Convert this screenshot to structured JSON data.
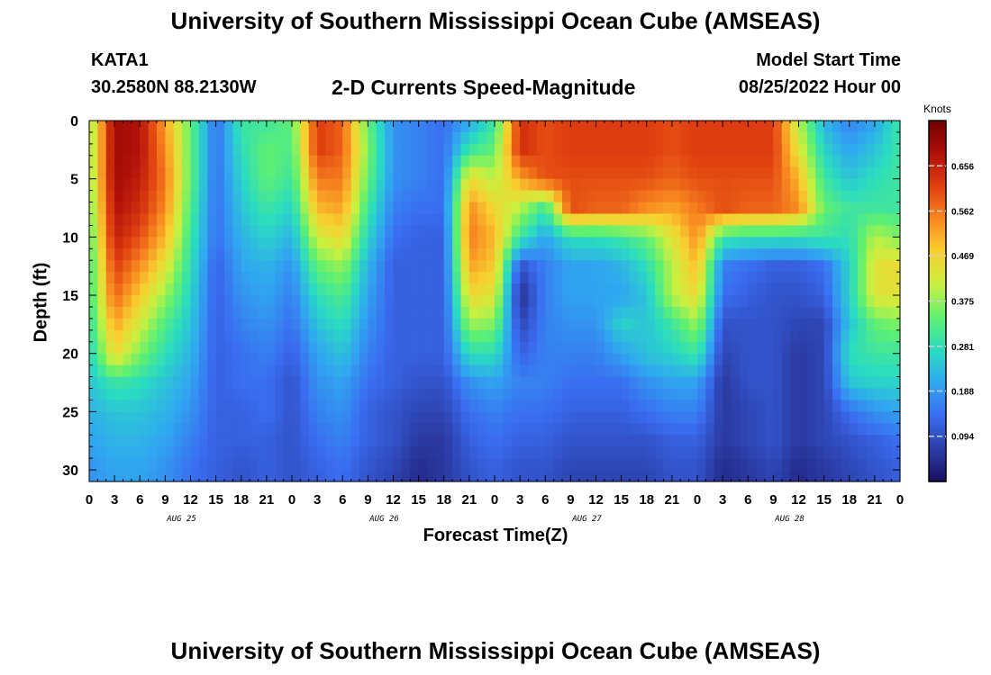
{
  "header": {
    "title": "University of Southern Mississippi Ocean Cube (AMSEAS)",
    "station_id": "KATA1",
    "station_coords": "30.2580N  88.2130W",
    "plot_title": "2-D Currents Speed-Magnitude",
    "model_start_label": "Model Start Time",
    "model_start_value": "08/25/2022 Hour 00"
  },
  "footer": {
    "repeated_title": "University of Southern Mississippi Ocean Cube (AMSEAS)"
  },
  "chart_data": {
    "type": "heatmap",
    "title": "2-D Currents Speed-Magnitude",
    "xlabel": "Forecast Time(Z)",
    "ylabel": "Depth (ft)",
    "x_tick_labels": [
      "0",
      "3",
      "6",
      "9",
      "12",
      "15",
      "18",
      "21",
      "0",
      "3",
      "6",
      "9",
      "12",
      "15",
      "18",
      "21",
      "0",
      "3",
      "6",
      "9",
      "12",
      "15",
      "18",
      "21",
      "0",
      "3",
      "6",
      "9",
      "12",
      "15",
      "18",
      "21",
      "0"
    ],
    "date_labels": [
      "AUG 25",
      "AUG 26",
      "AUG 27",
      "AUG 28"
    ],
    "x_range_hours": [
      0,
      96
    ],
    "y_ticks": [
      0,
      5,
      10,
      15,
      20,
      25,
      30
    ],
    "y_range_ft": [
      0,
      31
    ],
    "y_inverted": true,
    "colorbar": {
      "unit_label": "Knots",
      "tick_labels": [
        "0.656",
        "0.562",
        "0.469",
        "0.375",
        "0.281",
        "0.188",
        "0.094"
      ],
      "tick_values": [
        0.656,
        0.562,
        0.469,
        0.375,
        0.281,
        0.188,
        0.094
      ],
      "range": [
        0.0,
        0.75
      ],
      "colormap": [
        "#1a1060",
        "#2c3ea8",
        "#3a6cf0",
        "#30a8f0",
        "#2adcc0",
        "#60f070",
        "#c8f040",
        "#f8d030",
        "#f88820",
        "#e04010",
        "#b01008",
        "#700000"
      ]
    },
    "field": {
      "description_columns_hours": [
        0,
        3,
        6,
        9,
        12,
        15,
        18,
        21,
        24,
        27,
        30,
        33,
        36,
        39,
        42,
        45,
        48,
        51,
        54,
        57,
        60,
        63,
        66,
        69,
        72,
        75,
        78,
        81,
        84,
        87,
        90,
        93,
        96
      ],
      "depth_rows_ft": [
        0,
        2.5,
        5,
        7.5,
        10,
        12.5,
        15,
        17.5,
        20,
        22.5,
        25,
        27.5,
        30
      ],
      "speed_knots_by_depth": [
        [
          0.36,
          0.7,
          0.68,
          0.52,
          0.34,
          0.14,
          0.3,
          0.3,
          0.34,
          0.62,
          0.58,
          0.34,
          0.18,
          0.16,
          0.14,
          0.2,
          0.3,
          0.64,
          0.6,
          0.62,
          0.62,
          0.62,
          0.62,
          0.6,
          0.62,
          0.62,
          0.62,
          0.62,
          0.4,
          0.22,
          0.16,
          0.2,
          0.3
        ],
        [
          0.36,
          0.7,
          0.68,
          0.54,
          0.34,
          0.14,
          0.28,
          0.34,
          0.32,
          0.62,
          0.58,
          0.36,
          0.18,
          0.16,
          0.14,
          0.3,
          0.34,
          0.64,
          0.6,
          0.62,
          0.62,
          0.62,
          0.62,
          0.6,
          0.62,
          0.62,
          0.62,
          0.62,
          0.44,
          0.26,
          0.2,
          0.24,
          0.3
        ],
        [
          0.36,
          0.7,
          0.66,
          0.56,
          0.34,
          0.14,
          0.26,
          0.34,
          0.3,
          0.56,
          0.56,
          0.34,
          0.18,
          0.16,
          0.14,
          0.46,
          0.4,
          0.52,
          0.6,
          0.6,
          0.6,
          0.6,
          0.6,
          0.58,
          0.6,
          0.6,
          0.6,
          0.6,
          0.5,
          0.3,
          0.24,
          0.28,
          0.3
        ],
        [
          0.34,
          0.68,
          0.64,
          0.54,
          0.32,
          0.14,
          0.24,
          0.3,
          0.26,
          0.5,
          0.52,
          0.3,
          0.16,
          0.14,
          0.14,
          0.54,
          0.46,
          0.4,
          0.3,
          0.6,
          0.58,
          0.58,
          0.54,
          0.52,
          0.56,
          0.6,
          0.58,
          0.58,
          0.54,
          0.34,
          0.3,
          0.3,
          0.3
        ],
        [
          0.32,
          0.66,
          0.6,
          0.5,
          0.3,
          0.14,
          0.22,
          0.26,
          0.22,
          0.42,
          0.46,
          0.26,
          0.14,
          0.12,
          0.12,
          0.56,
          0.5,
          0.3,
          0.2,
          0.28,
          0.28,
          0.3,
          0.34,
          0.44,
          0.54,
          0.3,
          0.28,
          0.28,
          0.28,
          0.3,
          0.28,
          0.4,
          0.36
        ],
        [
          0.3,
          0.62,
          0.54,
          0.44,
          0.28,
          0.12,
          0.2,
          0.22,
          0.18,
          0.34,
          0.38,
          0.22,
          0.12,
          0.12,
          0.12,
          0.52,
          0.48,
          0.1,
          0.16,
          0.2,
          0.2,
          0.22,
          0.28,
          0.4,
          0.5,
          0.16,
          0.14,
          0.12,
          0.12,
          0.14,
          0.26,
          0.44,
          0.46
        ],
        [
          0.3,
          0.58,
          0.48,
          0.38,
          0.26,
          0.12,
          0.18,
          0.2,
          0.16,
          0.28,
          0.32,
          0.2,
          0.12,
          0.12,
          0.12,
          0.46,
          0.44,
          0.04,
          0.16,
          0.2,
          0.2,
          0.2,
          0.24,
          0.4,
          0.46,
          0.14,
          0.12,
          0.1,
          0.1,
          0.12,
          0.26,
          0.44,
          0.44
        ],
        [
          0.28,
          0.52,
          0.42,
          0.32,
          0.24,
          0.12,
          0.16,
          0.18,
          0.14,
          0.24,
          0.28,
          0.18,
          0.12,
          0.12,
          0.12,
          0.38,
          0.36,
          0.08,
          0.16,
          0.18,
          0.18,
          0.26,
          0.24,
          0.3,
          0.38,
          0.1,
          0.1,
          0.1,
          0.08,
          0.08,
          0.24,
          0.34,
          0.36
        ],
        [
          0.26,
          0.46,
          0.36,
          0.28,
          0.22,
          0.12,
          0.14,
          0.16,
          0.12,
          0.2,
          0.24,
          0.16,
          0.12,
          0.12,
          0.12,
          0.28,
          0.28,
          0.12,
          0.16,
          0.16,
          0.16,
          0.2,
          0.24,
          0.26,
          0.3,
          0.08,
          0.1,
          0.1,
          0.06,
          0.08,
          0.28,
          0.3,
          0.3
        ],
        [
          0.24,
          0.3,
          0.28,
          0.24,
          0.2,
          0.12,
          0.14,
          0.14,
          0.1,
          0.18,
          0.2,
          0.14,
          0.12,
          0.1,
          0.1,
          0.18,
          0.2,
          0.16,
          0.16,
          0.14,
          0.14,
          0.14,
          0.18,
          0.2,
          0.2,
          0.06,
          0.1,
          0.1,
          0.06,
          0.08,
          0.24,
          0.26,
          0.26
        ],
        [
          0.22,
          0.24,
          0.24,
          0.22,
          0.18,
          0.12,
          0.12,
          0.14,
          0.1,
          0.16,
          0.18,
          0.12,
          0.1,
          0.08,
          0.08,
          0.14,
          0.16,
          0.14,
          0.14,
          0.12,
          0.12,
          0.12,
          0.14,
          0.16,
          0.16,
          0.06,
          0.08,
          0.1,
          0.06,
          0.08,
          0.14,
          0.18,
          0.2
        ],
        [
          0.2,
          0.22,
          0.22,
          0.2,
          0.16,
          0.12,
          0.12,
          0.12,
          0.1,
          0.14,
          0.16,
          0.12,
          0.1,
          0.06,
          0.06,
          0.12,
          0.14,
          0.12,
          0.12,
          0.1,
          0.1,
          0.1,
          0.1,
          0.12,
          0.12,
          0.06,
          0.08,
          0.1,
          0.06,
          0.08,
          0.1,
          0.12,
          0.14
        ],
        [
          0.18,
          0.2,
          0.2,
          0.18,
          0.14,
          0.12,
          0.1,
          0.12,
          0.1,
          0.12,
          0.14,
          0.1,
          0.08,
          0.04,
          0.06,
          0.1,
          0.12,
          0.1,
          0.1,
          0.08,
          0.08,
          0.08,
          0.08,
          0.1,
          0.1,
          0.04,
          0.06,
          0.08,
          0.04,
          0.06,
          0.08,
          0.1,
          0.12
        ]
      ]
    },
    "grid": false,
    "legend": "colorbar-right"
  }
}
